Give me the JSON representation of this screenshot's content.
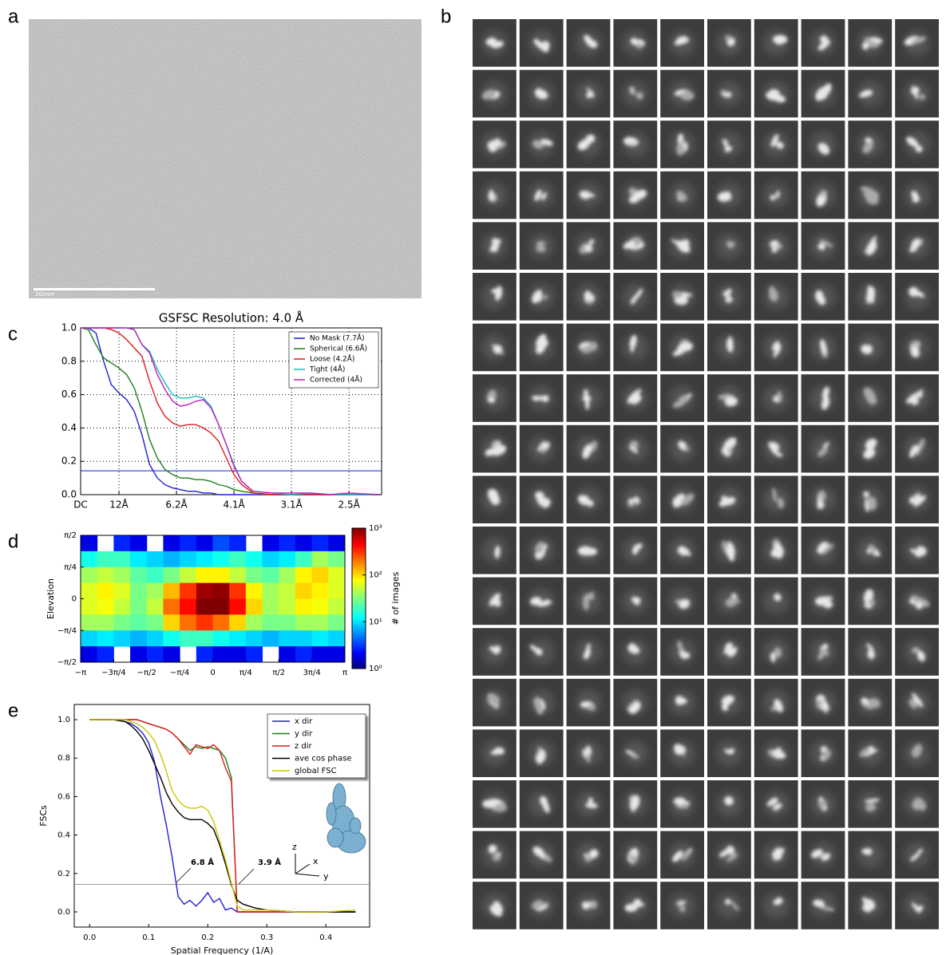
{
  "panel_labels": [
    "a",
    "b",
    "c",
    "d",
    "e"
  ],
  "micrograph": {
    "scale_bar_label": "200nm"
  },
  "chart_data": [
    {
      "type": "line",
      "title": "GSFSC Resolution: 4.0  Å",
      "x": [
        0,
        2,
        4,
        6,
        8,
        10,
        12,
        14,
        16,
        18,
        20,
        22,
        24,
        26,
        28,
        30,
        32,
        34,
        36,
        38,
        40,
        42,
        45,
        50,
        55,
        60,
        65,
        70,
        78
      ],
      "series": [
        {
          "name": "No Mask (7.7Å)",
          "color": "#1f1fd6",
          "values": [
            1,
            1,
            0.97,
            0.8,
            0.66,
            0.61,
            0.57,
            0.5,
            0.36,
            0.18,
            0.1,
            0.06,
            0.04,
            0.03,
            0.02,
            0.02,
            0.01,
            0.01,
            0,
            0,
            0,
            0,
            0,
            0,
            0,
            0,
            0,
            0,
            0
          ]
        },
        {
          "name": "Spherical (6.6Å)",
          "color": "#1a7f1a",
          "values": [
            1,
            0.99,
            0.9,
            0.82,
            0.79,
            0.76,
            0.72,
            0.64,
            0.5,
            0.33,
            0.22,
            0.15,
            0.12,
            0.1,
            0.1,
            0.09,
            0.09,
            0.08,
            0.06,
            0.05,
            0.03,
            0.02,
            0.01,
            0,
            0,
            0,
            0,
            0,
            0
          ]
        },
        {
          "name": "Loose (4.2Å)",
          "color": "#e41a1a",
          "values": [
            1,
            1,
            1,
            1,
            0.99,
            0.97,
            0.93,
            0.88,
            0.83,
            0.68,
            0.55,
            0.47,
            0.43,
            0.41,
            0.42,
            0.42,
            0.4,
            0.37,
            0.32,
            0.22,
            0.12,
            0.06,
            0.01,
            0,
            0,
            0,
            0,
            0,
            0
          ]
        },
        {
          "name": "Tight (4Å)",
          "color": "#17bdbd",
          "values": [
            1,
            1,
            1,
            1,
            1,
            1,
            1,
            0.99,
            0.9,
            0.86,
            0.75,
            0.67,
            0.6,
            0.58,
            0.58,
            0.59,
            0.58,
            0.53,
            0.42,
            0.3,
            0.18,
            0.08,
            0.02,
            0.01,
            0,
            0.01,
            0,
            0,
            0
          ]
        },
        {
          "name": "Corrected (4Å)",
          "color": "#bf1fbf",
          "values": [
            1,
            1,
            1,
            1,
            1,
            1,
            1,
            0.99,
            0.9,
            0.85,
            0.72,
            0.63,
            0.56,
            0.53,
            0.54,
            0.56,
            0.57,
            0.52,
            0.42,
            0.3,
            0.17,
            0.08,
            0.02,
            0.01,
            0.01,
            0.01,
            0,
            0.01,
            0
          ]
        }
      ],
      "xlim": [
        0,
        78.5
      ],
      "xticks": [
        {
          "value": 0,
          "label": "DC"
        },
        {
          "value": 10,
          "label": "12Å"
        },
        {
          "value": 25,
          "label": "6.2Å"
        },
        {
          "value": 40,
          "label": "4.1Å"
        },
        {
          "value": 55,
          "label": "3.1Å"
        },
        {
          "value": 70,
          "label": "2.5Å"
        }
      ],
      "ylim": [
        0,
        1
      ],
      "yticks": [
        {
          "value": 0,
          "label": "0.0"
        },
        {
          "value": 0.2,
          "label": "0.2"
        },
        {
          "value": 0.4,
          "label": "0.4"
        },
        {
          "value": 0.6,
          "label": "0.6"
        },
        {
          "value": 0.8,
          "label": "0.8"
        },
        {
          "value": 1,
          "label": "1.0"
        }
      ],
      "hline": 0.143,
      "hline_color": "#1f1fd6",
      "grid": true,
      "legend": "upper-right"
    },
    {
      "type": "hexbin",
      "ylabel": "Elevation",
      "colorbar_label": "# of images",
      "xlim": [
        -3.1416,
        3.1416
      ],
      "xticks": [
        {
          "value": -3.1416,
          "label": "−π"
        },
        {
          "value": -2.3562,
          "label": "−3π/4"
        },
        {
          "value": -1.5708,
          "label": "−π/2"
        },
        {
          "value": -0.7854,
          "label": "−π/4"
        },
        0,
        {
          "value": 0.7854,
          "label": "π/4"
        },
        {
          "value": 1.5708,
          "label": "π/2"
        },
        {
          "value": 2.3562,
          "label": "3π/4"
        },
        {
          "value": 3.1416,
          "label": "π"
        }
      ],
      "ylim": [
        -1.5708,
        1.5708
      ],
      "yticks": [
        {
          "value": -1.5708,
          "label": "−π/2"
        },
        {
          "value": -0.7854,
          "label": "−π/4"
        },
        0,
        {
          "value": 0.7854,
          "label": "π/4"
        },
        {
          "value": 1.5708,
          "label": "π/2"
        }
      ],
      "clim": [
        1,
        1000
      ],
      "log_color": true,
      "cticks": [
        {
          "value": 1,
          "label": "10⁰"
        },
        {
          "value": 10,
          "label": "10¹"
        },
        {
          "value": 100,
          "label": "10²"
        },
        {
          "value": 1000,
          "label": "10³"
        }
      ],
      "z": [
        [
          2,
          null,
          3,
          2,
          null,
          2,
          3,
          2,
          4,
          3,
          null,
          2,
          3,
          2,
          3,
          2
        ],
        [
          15,
          20,
          20,
          12,
          10,
          8,
          10,
          12,
          15,
          20,
          15,
          10,
          12,
          20,
          40,
          30
        ],
        [
          40,
          50,
          40,
          25,
          20,
          30,
          50,
          80,
          80,
          50,
          30,
          25,
          40,
          80,
          100,
          60
        ],
        [
          60,
          80,
          60,
          30,
          40,
          120,
          300,
          800,
          900,
          300,
          80,
          40,
          50,
          100,
          80,
          60
        ],
        [
          60,
          70,
          50,
          30,
          50,
          200,
          400,
          1000,
          1000,
          400,
          100,
          40,
          50,
          80,
          70,
          50
        ],
        [
          40,
          40,
          30,
          25,
          30,
          100,
          200,
          300,
          200,
          100,
          40,
          30,
          30,
          40,
          40,
          30
        ],
        [
          10,
          12,
          10,
          8,
          10,
          15,
          20,
          20,
          15,
          12,
          10,
          8,
          10,
          10,
          12,
          10
        ],
        [
          2,
          3,
          null,
          2,
          3,
          2,
          null,
          3,
          2,
          2,
          3,
          null,
          2,
          3,
          2,
          2
        ]
      ]
    },
    {
      "type": "line",
      "xlabel": "Spatial Frequency (1/A)",
      "ylabel": "FSCs",
      "x": [
        0,
        0.02,
        0.04,
        0.06,
        0.07,
        0.08,
        0.09,
        0.1,
        0.11,
        0.12,
        0.13,
        0.14,
        0.15,
        0.16,
        0.17,
        0.18,
        0.19,
        0.2,
        0.21,
        0.22,
        0.23,
        0.24,
        0.25,
        0.26,
        0.28,
        0.3,
        0.35,
        0.4,
        0.45
      ],
      "series": [
        {
          "name": "x dir",
          "color": "#1f1fd6",
          "values": [
            1,
            1,
            1,
            0.99,
            0.98,
            0.96,
            0.93,
            0.88,
            0.78,
            0.6,
            0.45,
            0.28,
            0.08,
            0.04,
            0.06,
            0.03,
            0.06,
            0.1,
            0.05,
            0.07,
            0.01,
            0.02,
            0,
            0,
            0,
            0,
            0,
            0,
            0
          ]
        },
        {
          "name": "y dir",
          "color": "#1a7f1a",
          "values": [
            1,
            1,
            1,
            1,
            1,
            1,
            0.99,
            0.98,
            0.97,
            0.96,
            0.95,
            0.93,
            0.9,
            0.87,
            0.84,
            0.86,
            0.85,
            0.86,
            0.85,
            0.84,
            0.8,
            0.7,
            0,
            0,
            0,
            0,
            0,
            0,
            0
          ]
        },
        {
          "name": "z dir",
          "color": "#e41a1a",
          "values": [
            1,
            1,
            1,
            1,
            1,
            1,
            0.99,
            0.98,
            0.97,
            0.96,
            0.95,
            0.93,
            0.9,
            0.86,
            0.82,
            0.87,
            0.86,
            0.85,
            0.87,
            0.84,
            0.75,
            0.68,
            0,
            0,
            0,
            0,
            0,
            0,
            0
          ]
        },
        {
          "name": "ave cos phase",
          "color": "#000000",
          "values": [
            1,
            1,
            1,
            0.99,
            0.97,
            0.94,
            0.9,
            0.84,
            0.77,
            0.7,
            0.62,
            0.56,
            0.52,
            0.49,
            0.48,
            0.48,
            0.48,
            0.46,
            0.43,
            0.35,
            0.25,
            0.14,
            0.06,
            0.04,
            0.02,
            0.01,
            0,
            0,
            0
          ]
        },
        {
          "name": "global FSC",
          "color": "#c8c800",
          "values": [
            1,
            1,
            1,
            1,
            0.99,
            0.98,
            0.96,
            0.93,
            0.89,
            0.82,
            0.73,
            0.63,
            0.58,
            0.55,
            0.54,
            0.54,
            0.55,
            0.53,
            0.47,
            0.37,
            0.27,
            0.15,
            0.03,
            0.01,
            0.01,
            0.01,
            0,
            0,
            0.01
          ]
        }
      ],
      "xlim": [
        -0.026,
        0.474
      ],
      "xticks": [
        {
          "value": 0,
          "label": "0.0"
        },
        0.1,
        0.2,
        0.3,
        0.4
      ],
      "ylim": [
        -0.079,
        1.079
      ],
      "yticks": [
        {
          "value": 0,
          "label": "0.0"
        },
        0.2,
        0.4,
        0.6,
        0.8,
        {
          "value": 1,
          "label": "1.0"
        }
      ],
      "hline": 0.143,
      "hline_color": "#999999",
      "grid": false,
      "legend": "upper-right",
      "annotations": [
        "6.8 Å",
        "3.9 Å"
      ],
      "inset_axes": [
        "z",
        "x",
        "y"
      ]
    }
  ]
}
